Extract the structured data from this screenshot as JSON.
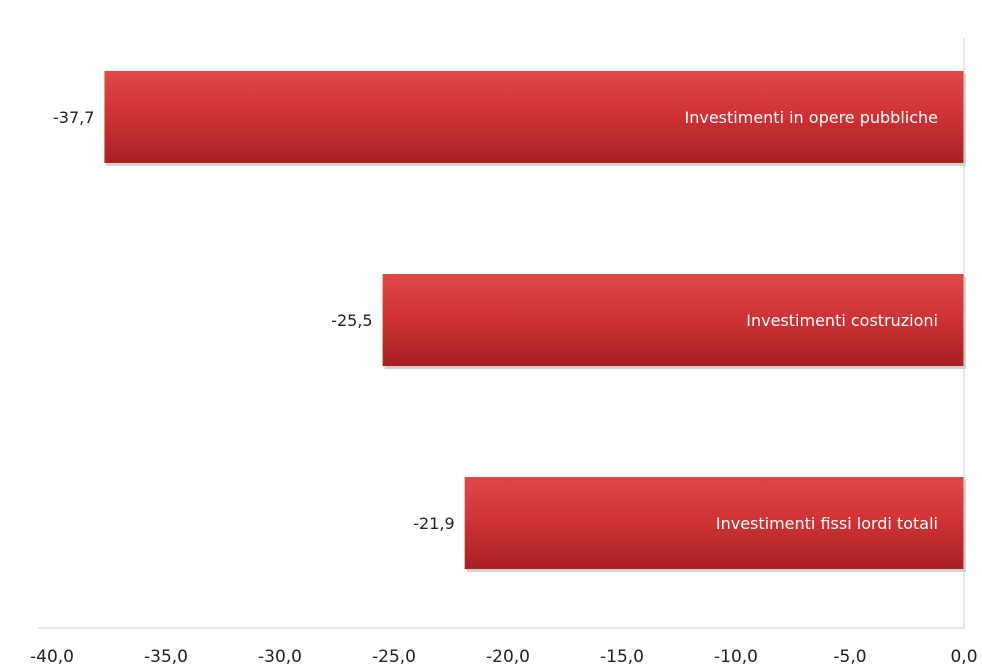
{
  "chart_data": {
    "type": "bar",
    "orientation": "horizontal",
    "categories": [
      "Investimenti in opere pubbliche",
      "Investimenti costruzioni",
      "Investimenti fissi lordi totali"
    ],
    "values": [
      -37.7,
      -25.5,
      -21.9
    ],
    "value_labels": [
      "-37,7",
      "-25,5",
      "-21,9"
    ],
    "xlim": [
      -40,
      0
    ],
    "x_ticks": [
      -40,
      -35,
      -30,
      -25,
      -20,
      -15,
      -10,
      -5,
      0
    ],
    "x_tick_labels": [
      "-40,0",
      "-35,0",
      "-30,0",
      "-25,0",
      "-20,0",
      "-15,0",
      "-10,0",
      "-5,0",
      "0,0"
    ],
    "title": "",
    "xlabel": "",
    "ylabel": "",
    "grid": false,
    "legend": "none",
    "category_labels_position": "inside-bar-right",
    "colors": {
      "bar_light": "#e04848",
      "bar_mid": "#d03436",
      "bar_dark": "#a82022",
      "bar_label": "#ffffff",
      "axis": "#d0d0d0",
      "text": "#222222"
    }
  }
}
